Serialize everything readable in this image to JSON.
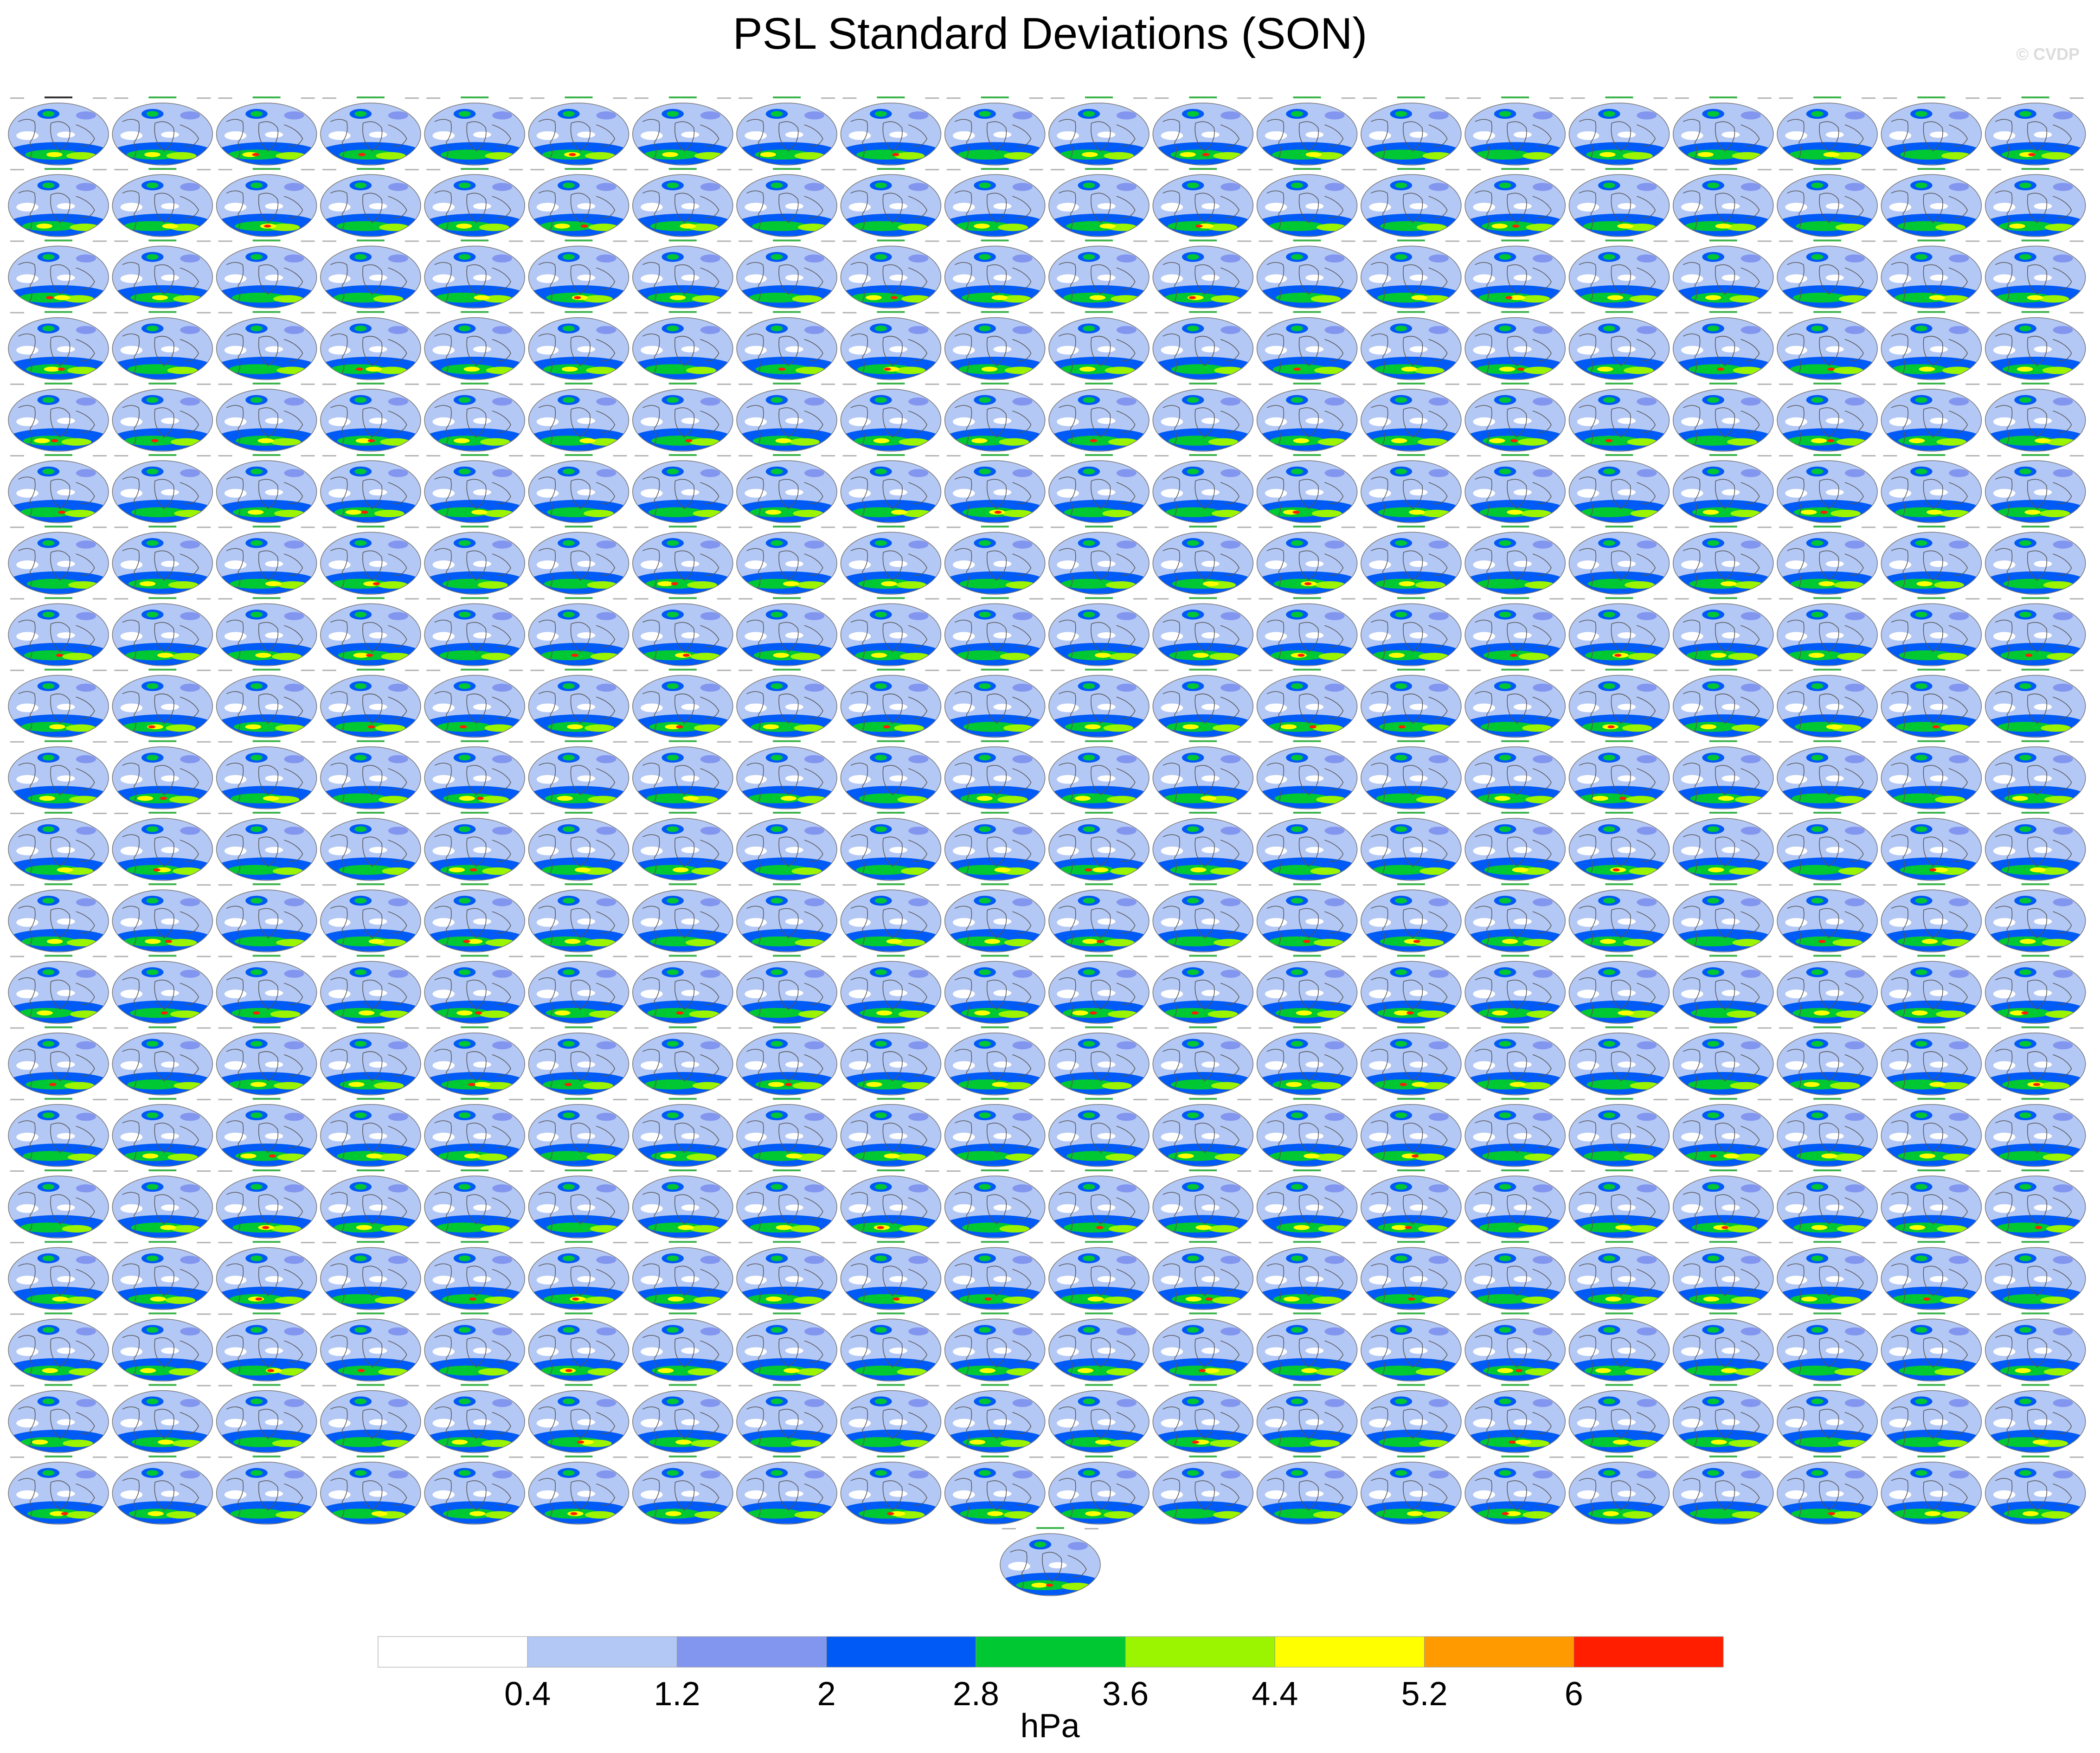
{
  "title": "PSL Standard Deviations (SON)",
  "watermark": "© CVDP",
  "colorbar": {
    "unit": "hPa",
    "labels": [
      "0.4",
      "1.2",
      "2",
      "2.8",
      "3.6",
      "4.4",
      "5.2",
      "6"
    ],
    "colors": [
      "#ffffff",
      "#b4c8f5",
      "#8296f0",
      "#005af5",
      "#00c832",
      "#9bf500",
      "#ffff00",
      "#ff9b00",
      "#ff1e00"
    ]
  },
  "chart_data": {
    "type": "heatmap",
    "title": "PSL Standard Deviations (SON)",
    "projection": "global-map-panels",
    "panel_count": 401,
    "grid": {
      "columns": 20,
      "full_rows": 20,
      "extra_bottom_panels": 1
    },
    "first_panel_label": "ERA5_psl",
    "ensemble_panel_label_prefix": "CLENS-simple-byH",
    "levels": [
      0.4,
      1.2,
      2,
      2.8,
      3.6,
      4.4,
      5.2,
      6
    ],
    "unit": "hPa"
  }
}
